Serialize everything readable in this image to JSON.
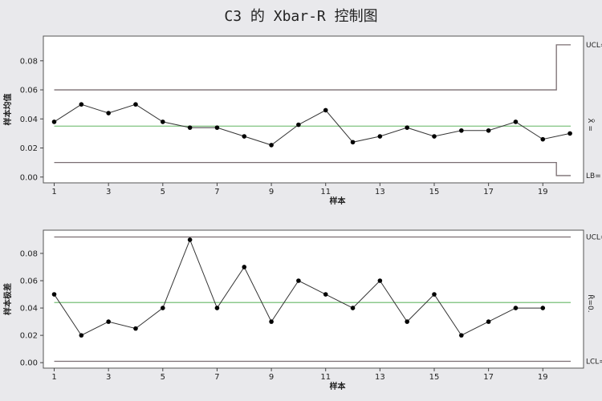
{
  "title": "C3 的 Xbar-R 控制图",
  "chart_data": [
    {
      "type": "line",
      "name": "xbar",
      "xlabel": "样本",
      "ylabel": "样本均值",
      "x": [
        1,
        2,
        3,
        4,
        5,
        6,
        7,
        8,
        9,
        10,
        11,
        12,
        13,
        14,
        15,
        16,
        17,
        18,
        19,
        20
      ],
      "values": [
        0.038,
        0.05,
        0.044,
        0.05,
        0.038,
        0.034,
        0.034,
        0.028,
        0.022,
        0.036,
        0.046,
        0.024,
        0.028,
        0.034,
        0.028,
        0.032,
        0.032,
        0.038,
        0.026,
        0.03
      ],
      "xticks": [
        "1",
        "3",
        "5",
        "7",
        "9",
        "11",
        "13",
        "15",
        "17",
        "19"
      ],
      "yticks": [
        "0.00",
        "0.02",
        "0.04",
        "0.06",
        "0.08"
      ],
      "ylim": [
        -0.004,
        0.097
      ],
      "xlim": [
        0.6,
        20.5
      ],
      "ucl": [
        0.06,
        0.06,
        0.06,
        0.091
      ],
      "center": 0.035,
      "lcl": [
        0.01,
        0.01,
        0.01,
        0.001
      ],
      "limit_change_at": 19.5,
      "right_labels": [
        "UCL=",
        "X̄ =",
        "LB="
      ],
      "colors": {
        "limits": "#7a6e72",
        "center": "#8cc98c",
        "data": "#000000"
      }
    },
    {
      "type": "line",
      "name": "range",
      "xlabel": "样本",
      "ylabel": "样本极差",
      "x": [
        1,
        2,
        3,
        4,
        5,
        6,
        7,
        8,
        9,
        10,
        11,
        12,
        13,
        14,
        15,
        16,
        17,
        18,
        19
      ],
      "values": [
        0.05,
        0.02,
        0.03,
        0.025,
        0.04,
        0.09,
        0.04,
        0.07,
        0.03,
        0.06,
        0.05,
        0.04,
        0.06,
        0.03,
        0.05,
        0.02,
        0.03,
        0.04,
        0.04
      ],
      "xticks": [
        "1",
        "3",
        "5",
        "7",
        "9",
        "11",
        "13",
        "15",
        "17",
        "19"
      ],
      "yticks": [
        "0.00",
        "0.02",
        "0.04",
        "0.06",
        "0.08"
      ],
      "ylim": [
        -0.004,
        0.097
      ],
      "xlim": [
        0.6,
        20.5
      ],
      "ucl": 0.092,
      "center": 0.044,
      "lcl": 0.001,
      "right_labels": [
        "UCL=",
        "R̄=0.",
        "LCL="
      ],
      "colors": {
        "limits": "#7a6e72",
        "center": "#8cc98c",
        "data": "#000000"
      }
    }
  ]
}
